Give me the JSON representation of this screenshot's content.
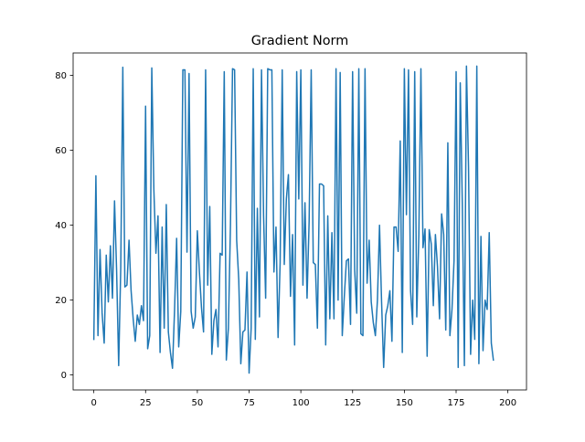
{
  "chart_data": {
    "type": "line",
    "title": "Gradient Norm",
    "xlabel": "",
    "ylabel": "",
    "xlim": [
      -10,
      209
    ],
    "ylim": [
      -4,
      86
    ],
    "xticks": [
      0,
      25,
      50,
      75,
      100,
      125,
      150,
      175,
      200
    ],
    "yticks": [
      0,
      20,
      40,
      60,
      80
    ],
    "grid": false,
    "legend": "none",
    "series": [
      {
        "color": "#1f77b4",
        "x_start": 0,
        "x_step": 1,
        "values": [
          9.5,
          53.2,
          10.5,
          33.5,
          16.5,
          8.5,
          32.0,
          19.5,
          34.5,
          20.5,
          46.5,
          28.0,
          2.5,
          28.5,
          82.2,
          23.5,
          24.0,
          36.0,
          22.5,
          15.0,
          9.0,
          16.0,
          13.5,
          18.5,
          14.5,
          71.8,
          7.0,
          10.5,
          82.0,
          49.5,
          32.5,
          42.5,
          6.0,
          39.5,
          12.5,
          45.5,
          11.5,
          6.0,
          1.8,
          17.5,
          36.5,
          7.5,
          17.0,
          81.5,
          81.5,
          32.8,
          80.5,
          17.0,
          12.5,
          15.5,
          38.5,
          27.5,
          18.0,
          11.5,
          81.5,
          24.0,
          45.0,
          5.5,
          14.5,
          17.5,
          7.5,
          32.5,
          32.0,
          81.0,
          4.0,
          12.5,
          40.0,
          81.8,
          81.5,
          36.0,
          25.5,
          3.0,
          11.5,
          12.0,
          27.5,
          0.5,
          12.5,
          81.8,
          9.5,
          44.5,
          15.5,
          81.5,
          42.5,
          20.5,
          81.8,
          81.5,
          81.5,
          27.5,
          39.5,
          10.0,
          30.0,
          81.5,
          29.5,
          47.0,
          53.5,
          21.0,
          37.5,
          8.0,
          81.0,
          47.0,
          81.5,
          24.0,
          46.0,
          20.5,
          41.0,
          81.5,
          30.0,
          29.5,
          12.5,
          51.0,
          51.0,
          50.5,
          8.0,
          42.5,
          15.0,
          38.0,
          15.0,
          81.8,
          20.0,
          80.8,
          10.5,
          21.0,
          30.5,
          31.0,
          13.5,
          81.0,
          28.0,
          16.5,
          81.8,
          11.0,
          10.5,
          81.8,
          24.5,
          36.0,
          19.5,
          14.0,
          10.5,
          20.0,
          40.0,
          19.5,
          2.0,
          16.0,
          18.5,
          22.5,
          9.0,
          39.5,
          39.5,
          33.0,
          62.5,
          6.0,
          81.8,
          42.8,
          81.5,
          22.5,
          13.5,
          81.0,
          15.5,
          37.5,
          81.8,
          34.0,
          39.0,
          5.0,
          38.8,
          35.0,
          18.5,
          37.5,
          29.0,
          15.0,
          43.0,
          37.5,
          12.0,
          62.0,
          10.5,
          17.5,
          30.5,
          81.0,
          2.0,
          78.0,
          45.5,
          2.5,
          82.5,
          55.5,
          5.5,
          20.0,
          9.5,
          82.5,
          3.0,
          37.0,
          6.5,
          20.0,
          17.5,
          38.0,
          8.5,
          4.0
        ]
      }
    ]
  }
}
